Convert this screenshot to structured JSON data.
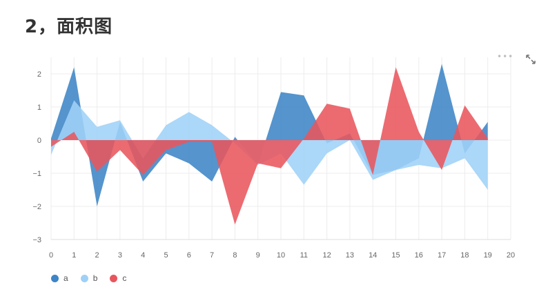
{
  "heading": "2，面积图",
  "toolbar": {
    "menu_icon": "more-dots-icon",
    "expand_icon": "expand-icon"
  },
  "chart_data": {
    "type": "area",
    "grid": true,
    "legend_position": "bottom-left",
    "x": [
      0,
      1,
      2,
      3,
      4,
      5,
      6,
      7,
      8,
      9,
      10,
      11,
      12,
      13,
      14,
      15,
      16,
      17,
      18,
      19
    ],
    "xlim": [
      0,
      20
    ],
    "ylim": [
      -3,
      2.5
    ],
    "x_ticks": [
      "0",
      "1",
      "2",
      "3",
      "4",
      "5",
      "6",
      "7",
      "8",
      "9",
      "10",
      "11",
      "12",
      "13",
      "14",
      "15",
      "16",
      "17",
      "18",
      "19",
      "20"
    ],
    "y_ticks": [
      "2",
      "1",
      "0",
      "−1",
      "−2",
      "−3"
    ],
    "series": [
      {
        "name": "a",
        "color": "#3d85c6",
        "values": [
          0.05,
          2.2,
          -2.0,
          0.55,
          -1.25,
          -0.4,
          -0.7,
          -1.25,
          0.1,
          -0.75,
          1.45,
          1.35,
          -0.1,
          0.2,
          -1.05,
          -0.9,
          -0.55,
          2.3,
          -0.4,
          0.55
        ]
      },
      {
        "name": "b",
        "color": "#9fd1f7",
        "values": [
          -0.45,
          1.2,
          0.4,
          0.6,
          -0.55,
          0.45,
          0.85,
          0.45,
          -0.1,
          -0.75,
          -0.4,
          -1.35,
          -0.4,
          0.0,
          -1.2,
          -0.9,
          -0.75,
          -0.85,
          -0.55,
          -1.5
        ]
      },
      {
        "name": "c",
        "color": "#e8565d",
        "values": [
          -0.2,
          0.25,
          -0.95,
          -0.3,
          -1.05,
          -0.3,
          -0.05,
          -0.05,
          -2.55,
          -0.7,
          -0.85,
          0.05,
          1.1,
          0.95,
          -1.05,
          2.2,
          0.25,
          -0.9,
          1.05,
          0.05
        ]
      }
    ]
  }
}
